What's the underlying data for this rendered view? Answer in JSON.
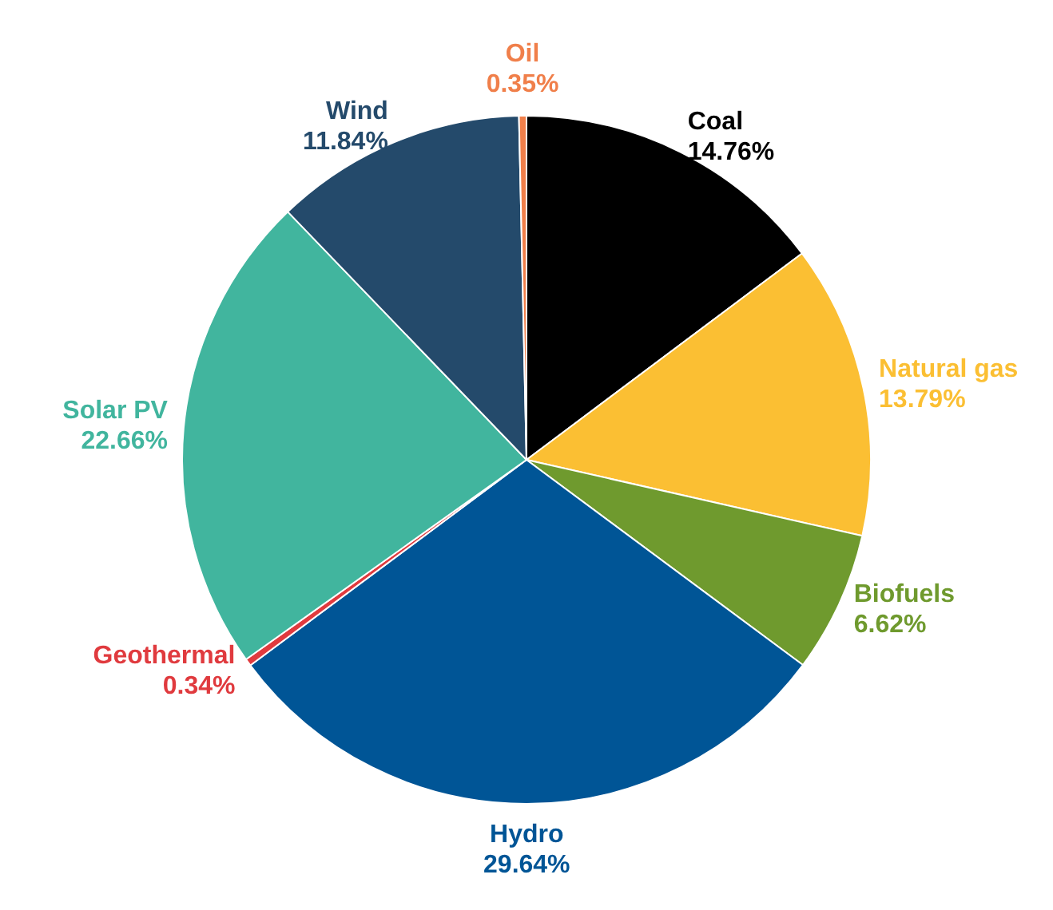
{
  "chart_data": {
    "type": "pie",
    "categories": [
      "Coal",
      "Natural gas",
      "Biofuels",
      "Hydro",
      "Geothermal",
      "Solar PV",
      "Wind",
      "Oil"
    ],
    "values": [
      14.76,
      13.79,
      6.62,
      29.64,
      0.34,
      22.66,
      11.84,
      0.35
    ],
    "value_labels": [
      "14.76%",
      "13.79%",
      "6.62%",
      "29.64%",
      "0.34%",
      "22.66%",
      "11.84%",
      "0.35%"
    ],
    "colors": [
      "#000000",
      "#fbbf33",
      "#6f9a2e",
      "#005596",
      "#e03a3e",
      "#41b59e",
      "#244a6b",
      "#f07f4a"
    ],
    "legend": false
  }
}
